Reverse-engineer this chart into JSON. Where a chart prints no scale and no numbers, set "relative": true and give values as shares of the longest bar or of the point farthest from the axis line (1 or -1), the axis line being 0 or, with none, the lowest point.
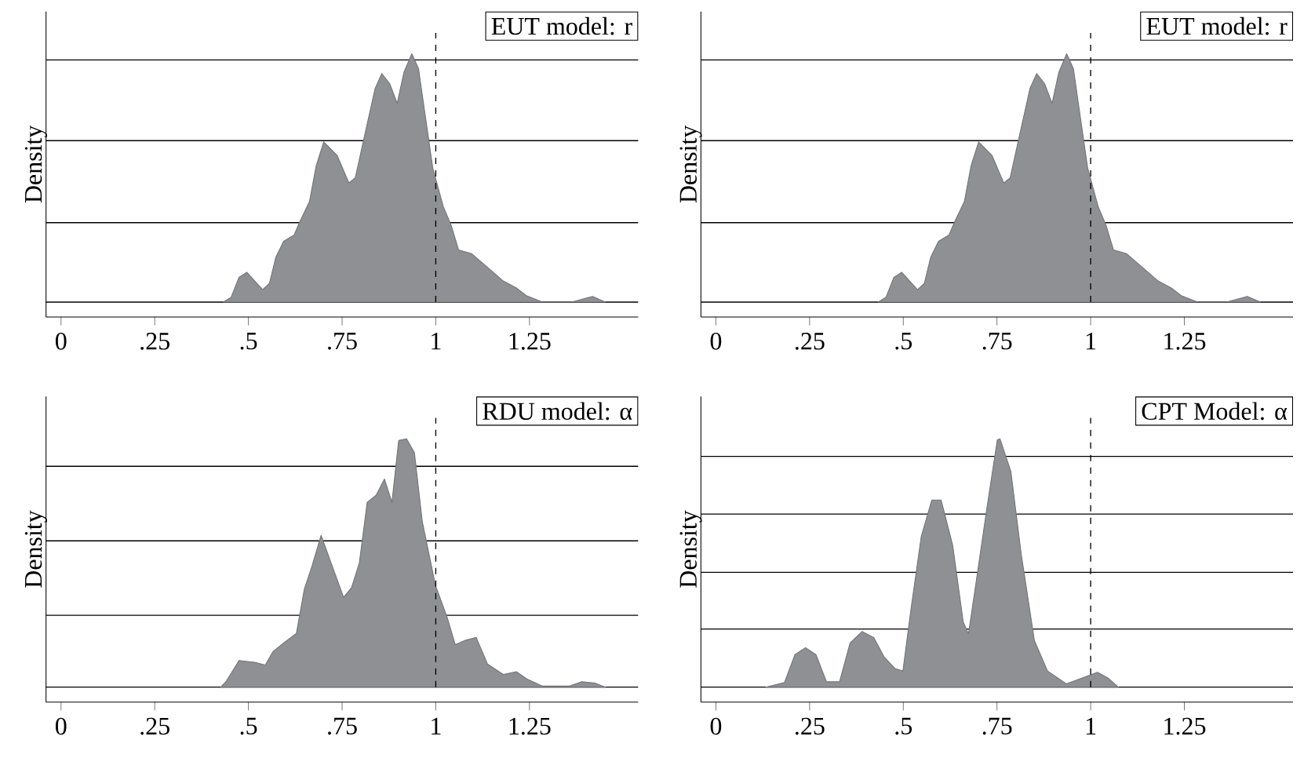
{
  "chart_data": [
    {
      "type": "area",
      "relative": true,
      "title": "EUT model: r",
      "ylabel": "Density",
      "color": "#8f9093",
      "xlim": [
        -0.04,
        1.54
      ],
      "xticks": [
        0,
        {
          "value": 0.25,
          "label": ".25"
        },
        {
          "value": 0.5,
          "label": ".5"
        },
        {
          "value": 0.75,
          "label": ".75"
        },
        1,
        1.25
      ],
      "ref_lines": [
        {
          "axis": "x",
          "value": 1,
          "line_style": "dashed"
        },
        {
          "axis": "y",
          "value": 0,
          "line_style": "solid"
        },
        {
          "axis": "y",
          "value": 0.32,
          "line_style": "solid"
        },
        {
          "axis": "y",
          "value": 0.65,
          "line_style": "solid"
        },
        {
          "axis": "y",
          "value": 0.975,
          "line_style": "solid"
        }
      ],
      "x": [
        0.433,
        0.454,
        0.475,
        0.496,
        0.538,
        0.556,
        0.573,
        0.594,
        0.622,
        0.636,
        0.663,
        0.681,
        0.701,
        0.737,
        0.768,
        0.785,
        0.81,
        0.838,
        0.856,
        0.877,
        0.897,
        0.915,
        0.936,
        0.954,
        0.971,
        0.992,
        1.02,
        1.041,
        1.061,
        1.096,
        1.138,
        1.18,
        1.215,
        1.243,
        1.285,
        1.362,
        1.418,
        1.453
      ],
      "values": [
        0,
        0.02,
        0.1,
        0.12,
        0.05,
        0.075,
        0.18,
        0.245,
        0.27,
        0.32,
        0.405,
        0.55,
        0.645,
        0.59,
        0.48,
        0.5,
        0.67,
        0.86,
        0.92,
        0.88,
        0.8,
        0.925,
        1.0,
        0.94,
        0.76,
        0.54,
        0.385,
        0.31,
        0.21,
        0.195,
        0.14,
        0.085,
        0.057,
        0.025,
        0,
        0,
        0.023,
        0
      ]
    },
    {
      "type": "area",
      "relative": true,
      "title": "EUT model: r",
      "ylabel": "Density",
      "color": "#8f9093",
      "xlim": [
        -0.04,
        1.54
      ],
      "xticks": [
        0,
        {
          "value": 0.25,
          "label": ".25"
        },
        {
          "value": 0.5,
          "label": ".5"
        },
        {
          "value": 0.75,
          "label": ".75"
        },
        1,
        1.25
      ],
      "ref_lines": [
        {
          "axis": "x",
          "value": 1,
          "line_style": "dashed"
        },
        {
          "axis": "y",
          "value": 0,
          "line_style": "solid"
        },
        {
          "axis": "y",
          "value": 0.32,
          "line_style": "solid"
        },
        {
          "axis": "y",
          "value": 0.65,
          "line_style": "solid"
        },
        {
          "axis": "y",
          "value": 0.975,
          "line_style": "solid"
        }
      ],
      "x": [
        0.433,
        0.454,
        0.475,
        0.496,
        0.538,
        0.556,
        0.573,
        0.594,
        0.622,
        0.636,
        0.663,
        0.681,
        0.701,
        0.737,
        0.768,
        0.785,
        0.81,
        0.838,
        0.856,
        0.877,
        0.897,
        0.915,
        0.936,
        0.954,
        0.971,
        0.992,
        1.02,
        1.041,
        1.061,
        1.096,
        1.138,
        1.18,
        1.215,
        1.243,
        1.285,
        1.362,
        1.418,
        1.453
      ],
      "values": [
        0,
        0.02,
        0.1,
        0.12,
        0.05,
        0.075,
        0.18,
        0.245,
        0.27,
        0.32,
        0.405,
        0.55,
        0.645,
        0.59,
        0.48,
        0.5,
        0.67,
        0.86,
        0.92,
        0.88,
        0.8,
        0.925,
        1.0,
        0.94,
        0.76,
        0.54,
        0.385,
        0.31,
        0.21,
        0.195,
        0.14,
        0.085,
        0.057,
        0.025,
        0,
        0,
        0.023,
        0
      ]
    },
    {
      "type": "area",
      "relative": true,
      "title": "RDU model: α",
      "ylabel": "Density",
      "color": "#8f9093",
      "xlim": [
        -0.04,
        1.54
      ],
      "xticks": [
        0,
        {
          "value": 0.25,
          "label": ".25"
        },
        {
          "value": 0.5,
          "label": ".5"
        },
        {
          "value": 0.75,
          "label": ".75"
        },
        1,
        1.25
      ],
      "ref_lines": [
        {
          "axis": "x",
          "value": 1,
          "line_style": "dashed"
        },
        {
          "axis": "y",
          "value": 0,
          "line_style": "solid"
        },
        {
          "axis": "y",
          "value": 0.289,
          "line_style": "solid"
        },
        {
          "axis": "y",
          "value": 0.589,
          "line_style": "solid"
        },
        {
          "axis": "y",
          "value": 0.889,
          "line_style": "solid"
        }
      ],
      "x": [
        0.426,
        0.44,
        0.475,
        0.517,
        0.545,
        0.566,
        0.594,
        0.628,
        0.649,
        0.67,
        0.694,
        0.726,
        0.754,
        0.775,
        0.796,
        0.817,
        0.841,
        0.863,
        0.883,
        0.901,
        0.922,
        0.943,
        0.964,
        0.999,
        1.031,
        1.052,
        1.08,
        1.108,
        1.138,
        1.18,
        1.215,
        1.243,
        1.285,
        1.355,
        1.39,
        1.425,
        1.453
      ],
      "values": [
        0,
        0.022,
        0.107,
        0.1,
        0.089,
        0.144,
        0.178,
        0.216,
        0.393,
        0.489,
        0.611,
        0.478,
        0.362,
        0.4,
        0.5,
        0.744,
        0.773,
        0.838,
        0.744,
        0.993,
        1.0,
        0.944,
        0.667,
        0.411,
        0.278,
        0.171,
        0.189,
        0.2,
        0.093,
        0.051,
        0.062,
        0.033,
        0.004,
        0.004,
        0.022,
        0.016,
        0
      ]
    },
    {
      "type": "area",
      "relative": true,
      "title": "CPT Model: α",
      "ylabel": "Density",
      "color": "#8f9093",
      "xlim": [
        -0.04,
        1.54
      ],
      "xticks": [
        0,
        {
          "value": 0.25,
          "label": ".25"
        },
        {
          "value": 0.5,
          "label": ".5"
        },
        {
          "value": 0.75,
          "label": ".75"
        },
        1,
        1.25
      ],
      "ref_lines": [
        {
          "axis": "x",
          "value": 1,
          "line_style": "dashed"
        },
        {
          "axis": "y",
          "value": 0,
          "line_style": "solid"
        },
        {
          "axis": "y",
          "value": 0.234,
          "line_style": "solid"
        },
        {
          "axis": "y",
          "value": 0.462,
          "line_style": "solid"
        },
        {
          "axis": "y",
          "value": 0.697,
          "line_style": "solid"
        },
        {
          "axis": "y",
          "value": 0.929,
          "line_style": "solid"
        }
      ],
      "x": [
        0.133,
        0.183,
        0.211,
        0.239,
        0.267,
        0.295,
        0.33,
        0.358,
        0.39,
        0.421,
        0.449,
        0.478,
        0.499,
        0.52,
        0.548,
        0.576,
        0.601,
        0.632,
        0.66,
        0.674,
        0.695,
        0.723,
        0.751,
        0.758,
        0.787,
        0.815,
        0.85,
        0.885,
        0.935,
        0.969,
        1.018,
        1.046,
        1.074
      ],
      "values": [
        0,
        0.019,
        0.131,
        0.159,
        0.131,
        0.022,
        0.022,
        0.178,
        0.224,
        0.2,
        0.121,
        0.075,
        0.065,
        0.308,
        0.607,
        0.753,
        0.753,
        0.57,
        0.262,
        0.215,
        0.43,
        0.72,
        0.996,
        1.0,
        0.869,
        0.533,
        0.187,
        0.065,
        0.013,
        0.032,
        0.06,
        0.037,
        0
      ]
    }
  ]
}
